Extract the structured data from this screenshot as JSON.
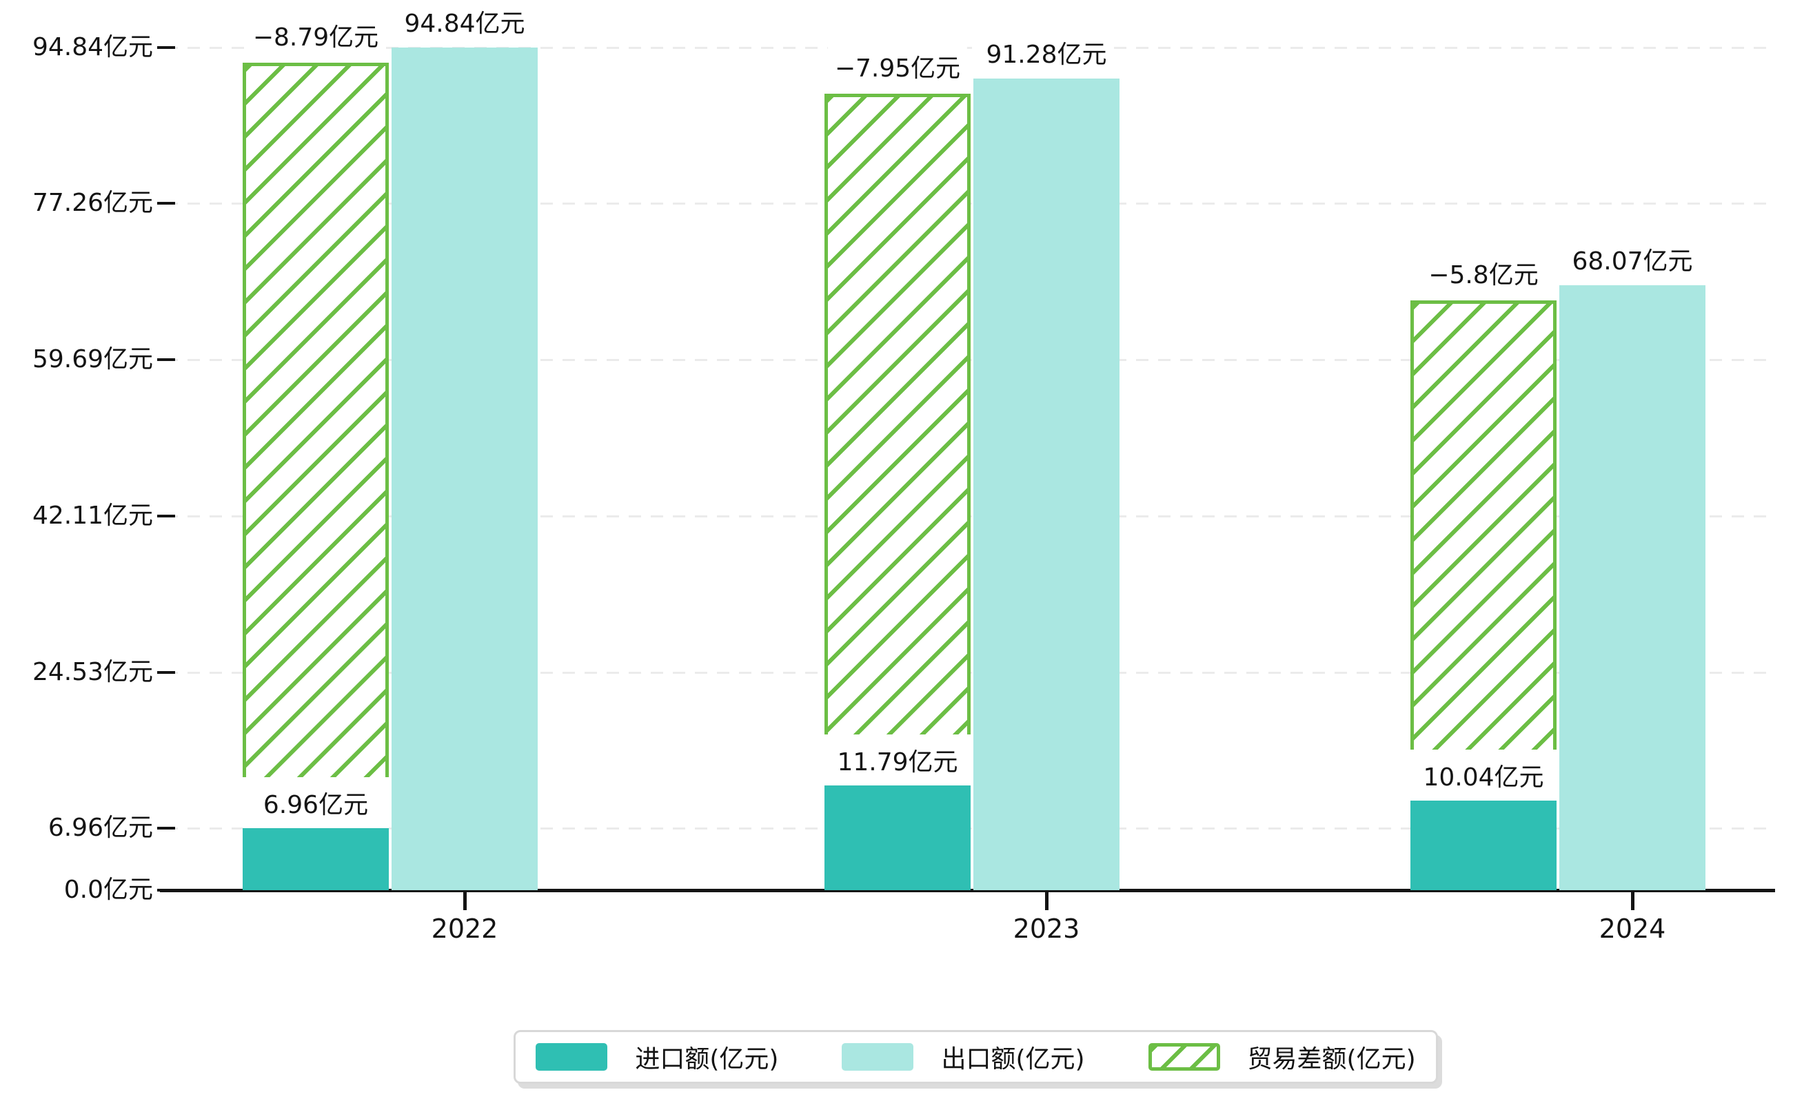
{
  "chart_data": {
    "type": "bar",
    "title": "",
    "categories": [
      "2022",
      "2023",
      "2024"
    ],
    "series": [
      {
        "name": "进口额(亿元)",
        "role": "import",
        "color": "#2FBFB3",
        "values": [
          6.96,
          11.79,
          10.04
        ],
        "data_labels": [
          "6.96亿元",
          "11.79亿元",
          "10.04亿元"
        ]
      },
      {
        "name": "出口额(亿元)",
        "role": "export",
        "color": "#AAE7E1",
        "values": [
          94.84,
          91.28,
          68.07
        ],
        "data_labels": [
          "94.84亿元",
          "91.28亿元",
          "68.07亿元"
        ]
      },
      {
        "name": "贸易差额(亿元)",
        "role": "trade-balance",
        "color": "#6CBE45",
        "pattern": "diagonal-hatch",
        "values": [
          -8.79,
          -7.95,
          -5.8
        ],
        "data_labels": [
          "−8.79亿元",
          "−7.95亿元",
          "−5.8亿元"
        ]
      }
    ],
    "y_axis": {
      "unit": "亿元",
      "range": [
        0,
        94.84
      ],
      "gridlines": "dashed",
      "ticks": [
        {
          "label": "0.0亿元",
          "value": 0
        },
        {
          "label": "6.96亿元",
          "value": 6.96
        },
        {
          "label": "24.53亿元",
          "value": 24.53
        },
        {
          "label": "42.11亿元",
          "value": 42.11
        },
        {
          "label": "59.69亿元",
          "value": 59.69
        },
        {
          "label": "77.26亿元",
          "value": 77.26
        },
        {
          "label": "94.84亿元",
          "value": 94.84
        }
      ]
    },
    "x_axis": {
      "labels": [
        "2022",
        "2023",
        "2024"
      ]
    },
    "legend": {
      "position": "bottom-center",
      "items": [
        "进口额(亿元)",
        "出口额(亿元)",
        "贸易差额(亿元)"
      ]
    }
  },
  "colors": {
    "import_bar": "#2FBFB3",
    "export_bar": "#AAE7E1",
    "trade_balance_hatch": "#6CBE45",
    "gridline": "#ebebeb",
    "axis": "#141414",
    "text": "#141414"
  }
}
